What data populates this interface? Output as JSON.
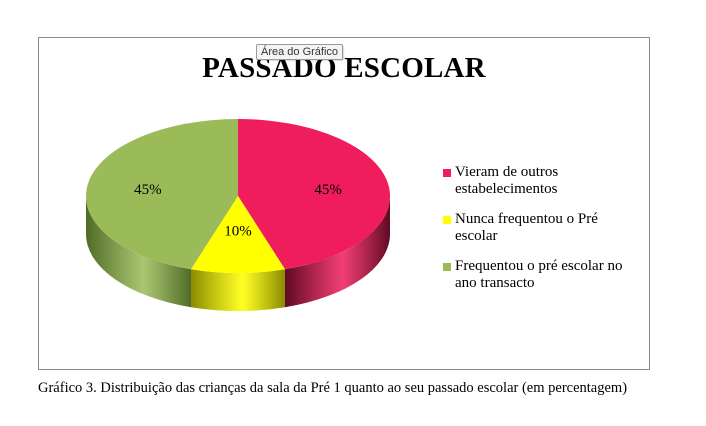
{
  "tooltip": "Área do Gráfico",
  "caption": "Gráfico 3. Distribuição das crianças da sala da Pré 1 quanto ao seu passado escolar (em percentagem)",
  "chart_data": {
    "type": "pie",
    "title": "PASSADO ESCOLAR",
    "style": "3d",
    "legend_position": "right",
    "slices": [
      {
        "label": "Vieram de outros estabelecimentos",
        "value": 45,
        "display": "45%",
        "color": "#ef1d5c",
        "dark": "#5e0a22"
      },
      {
        "label": "Nunca frequentou o Pré escolar",
        "value": 10,
        "display": "10%",
        "color": "#ffff00",
        "dark": "#8a8a00"
      },
      {
        "label": "Frequentou o pré escolar no ano transacto",
        "value": 45,
        "display": "45%",
        "color": "#9bbb59",
        "dark": "#4f6a26"
      }
    ]
  }
}
